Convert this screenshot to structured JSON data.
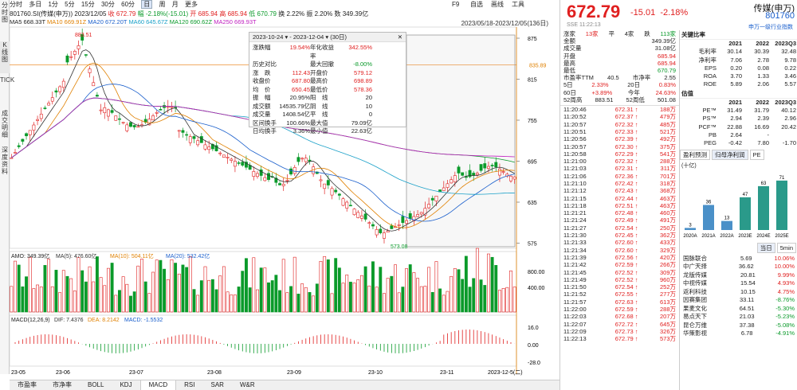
{
  "vsidebar": [
    "分时图",
    "K线图",
    "TICK",
    "成交明细",
    "深度资料"
  ],
  "toolbar": {
    "items": [
      "分时",
      "多日",
      "1分",
      "5分",
      "15分",
      "30分",
      "60分",
      "日",
      "周",
      "月",
      "更多"
    ],
    "active": "日",
    "f9": "F9",
    "extra": [
      "自选",
      "画线",
      "工具"
    ]
  },
  "info": {
    "code_name": "801760.SI(传媒(申万))",
    "date": "2023/12/05",
    "close": "收 672.79",
    "chg": "幅 -2.18%(-15.01)",
    "open": "开 685.94",
    "high": "高 685.94",
    "low": "低 670.79",
    "turnover": "换 2.22%",
    "amp": "振 2.20%",
    "vol": "数 349.39亿"
  },
  "ma": {
    "ma5": "MA5 668.33T",
    "ma10": "MA10 669.91Z",
    "ma20": "MA20 672.20T",
    "ma60": "MA60 645.67Z",
    "ma120": "MA120 690.62Z",
    "ma250": "MA250 669.93T"
  },
  "range_label": "2023/05/18-2023/12/05(136日)",
  "price_axis": [
    "875",
    "815",
    "755",
    "695",
    "635",
    "575"
  ],
  "price_line_label": "835.89",
  "high_label": "883.51",
  "low_label": "573.08",
  "tooltip": {
    "from": "2023-10-24",
    "to": "2023-12-04",
    "days": "(30日)",
    "rows": [
      [
        "涨跌幅",
        "19.54%",
        "年化收益率",
        "342.55%"
      ],
      [
        "历史对比",
        "",
        "最大回撤",
        "-8.00%"
      ],
      [
        "涨　跌",
        "112.43",
        "开盘价",
        "579.12"
      ],
      [
        "收盘价",
        "687.80",
        "最高价",
        "698.89"
      ],
      [
        "均　价",
        "650.45",
        "最低价",
        "578.36"
      ],
      [
        "振　幅",
        "20.95%",
        "阳　线",
        "20"
      ],
      [
        "成交额",
        "14535.79亿",
        "阴　线",
        "10"
      ],
      [
        "成交量",
        "1408.54亿",
        "平　线",
        "0"
      ],
      [
        "区间换手",
        "100.66%",
        "最大值",
        "79.09亿"
      ],
      [
        "日均换手",
        "3.36%",
        "最小值",
        "22.63亿"
      ]
    ]
  },
  "vol_ind": {
    "amo": "AMO: 349.39亿",
    "ma5": "MA(5): 476.60亿",
    "ma10": "MA(10): 504.11亿",
    "ma20": "MA(20): 532.42亿",
    "axis": [
      "800.00",
      "400.00"
    ]
  },
  "macd_ind": {
    "label": "MACD(12,26,9)",
    "dif": "DIF: 7.4376",
    "dea": "DEA: 8.2142",
    "macd": "MACD: -1.5532",
    "axis": [
      "16.0",
      "0.00",
      "-28.0"
    ]
  },
  "x_axis": [
    "23-05",
    "23-06",
    "23-07",
    "23-08",
    "23-09",
    "23-10",
    "23-11",
    "2023-12-5(二)"
  ],
  "bottom_tabs": [
    "市盈率",
    "市净率",
    "BOLL",
    "KDJ",
    "MACD",
    "RSI",
    "SAR",
    "W&R"
  ],
  "bottom_active": "MACD",
  "quote": {
    "price": "672.79",
    "chg": "-15.01",
    "pct": "-2.18%",
    "name": "传媒(申万)",
    "code": "801760",
    "sse": "SSE  11:22:13",
    "link": "申万一级行业指数"
  },
  "stats": [
    [
      "涨家",
      "13家",
      "平",
      "4家",
      "跌",
      "113家"
    ],
    [
      "金额",
      "",
      "",
      "",
      "",
      "349.39亿"
    ],
    [
      "成交量",
      "",
      "",
      "",
      "",
      "31.08亿"
    ],
    [
      "开盘",
      "",
      "",
      "",
      "",
      "685.94"
    ],
    [
      "最高",
      "",
      "",
      "",
      "",
      "685.94"
    ],
    [
      "最低",
      "",
      "",
      "",
      "",
      "670.79"
    ],
    [
      "市盈率TTM",
      "40.5",
      "",
      "",
      "市净率",
      "2.55"
    ],
    [
      "5日",
      "2.33%",
      "20日",
      "",
      "",
      "0.83%"
    ],
    [
      "60日",
      "+3.89%",
      "今年",
      "",
      "",
      "24.63%"
    ],
    [
      "52周高",
      "883.51",
      "52周低",
      "",
      "",
      "501.08"
    ]
  ],
  "ticks": [
    [
      "11:20:46",
      "672.31",
      "188万"
    ],
    [
      "11:20:52",
      "672.37",
      "479万"
    ],
    [
      "11:20:57",
      "672.32",
      "485万"
    ],
    [
      "11:20:51",
      "672.33",
      "521万"
    ],
    [
      "11:20:56",
      "672.39",
      "492万"
    ],
    [
      "11:20:57",
      "672.30",
      "375万"
    ],
    [
      "11:20:58",
      "672.29",
      "541万"
    ],
    [
      "11:21:00",
      "672.32",
      "288万"
    ],
    [
      "11:21:03",
      "672.31",
      "311万"
    ],
    [
      "11:21:06",
      "672.36",
      "701万"
    ],
    [
      "11:21:10",
      "672.42",
      "318万"
    ],
    [
      "11:21:12",
      "672.43",
      "368万"
    ],
    [
      "11:21:15",
      "672.44",
      "463万"
    ],
    [
      "11:21:18",
      "672.51",
      "463万"
    ],
    [
      "11:21:21",
      "672.48",
      "460万"
    ],
    [
      "11:21:24",
      "672.49",
      "491万"
    ],
    [
      "11:21:27",
      "672.54",
      "250万"
    ],
    [
      "11:21:30",
      "672.45",
      "362万"
    ],
    [
      "11:21:33",
      "672.60",
      "433万"
    ],
    [
      "11:21:34",
      "672.60",
      "329万"
    ],
    [
      "11:21:39",
      "672.56",
      "420万"
    ],
    [
      "11:21:42",
      "672.59",
      "266万"
    ],
    [
      "11:21:45",
      "672.52",
      "309万"
    ],
    [
      "11:21:49",
      "672.52",
      "960万"
    ],
    [
      "11:21:50",
      "672.54",
      "252万"
    ],
    [
      "11:21:52",
      "672.55",
      "277万"
    ],
    [
      "11:21:57",
      "672.63",
      "613万"
    ],
    [
      "11:22:00",
      "672.59",
      "288万"
    ],
    [
      "11:22:03",
      "672.68",
      "207万"
    ],
    [
      "11:22:07",
      "672.72",
      "645万"
    ],
    [
      "11:22:09",
      "672.73",
      "326万"
    ],
    [
      "11:22:13",
      "672.79",
      "573万"
    ]
  ],
  "fin": {
    "title": "关键比率",
    "years": [
      "",
      "2021",
      "2022",
      "2023Q3"
    ],
    "rows": [
      [
        "毛利率",
        "30.14",
        "30.39",
        "32.48"
      ],
      [
        "净利率",
        "7.06",
        "2.78",
        "9.78"
      ],
      [
        "EPS",
        "0.20",
        "0.08",
        "0.22"
      ],
      [
        "ROA",
        "3.70",
        "1.33",
        "3.46"
      ],
      [
        "ROE",
        "5.89",
        "2.06",
        "5.57"
      ]
    ],
    "val_title": "估值",
    "val_years": [
      "",
      "2021",
      "2022",
      "2023Q3"
    ],
    "val_rows": [
      [
        "PE™",
        "31.49",
        "31.79",
        "40.12"
      ],
      [
        "PS™",
        "2.94",
        "2.39",
        "2.96"
      ],
      [
        "PCF™",
        "22.88",
        "16.69",
        "20.42"
      ],
      [
        "PB",
        "2.64",
        "-",
        ""
      ],
      [
        "PEG",
        "-0.42",
        "7.80",
        "-1.70"
      ]
    ]
  },
  "forecast": {
    "tabs": [
      "盈利预测",
      "归母净利润",
      "PE"
    ],
    "active": "归母净利润",
    "unit": "(十亿)",
    "years": [
      "2020A",
      "2021A",
      "2022A",
      "2023E",
      "2024E",
      "2025E"
    ],
    "values": [
      3,
      36,
      13,
      47,
      63,
      71
    ]
  },
  "peers": {
    "tabs": [
      "当日",
      "5min"
    ],
    "rows": [
      [
        "国脉联合",
        "5.69",
        "10.06%"
      ],
      [
        "中广天择",
        "36.62",
        "10.00%"
      ],
      [
        "龙版传媒",
        "20.81",
        "9.99%"
      ],
      [
        "中视传媒",
        "15.54",
        "4.93%"
      ],
      [
        "返利科技",
        "10.15",
        "4.75%"
      ],
      [
        "",
        "",
        ""
      ],
      [
        "因赛集团",
        "33.11",
        "-8.76%"
      ],
      [
        "果麦文化",
        "64.51",
        "-5.30%"
      ],
      [
        "易点天下",
        "21.03",
        "-5.23%"
      ],
      [
        "昆仑万维",
        "37.38",
        "-5.08%"
      ],
      [
        "华策影视",
        "6.78",
        "-4.91%"
      ]
    ]
  },
  "colors": {
    "up": "#e02020",
    "down": "#0a9a2a"
  }
}
